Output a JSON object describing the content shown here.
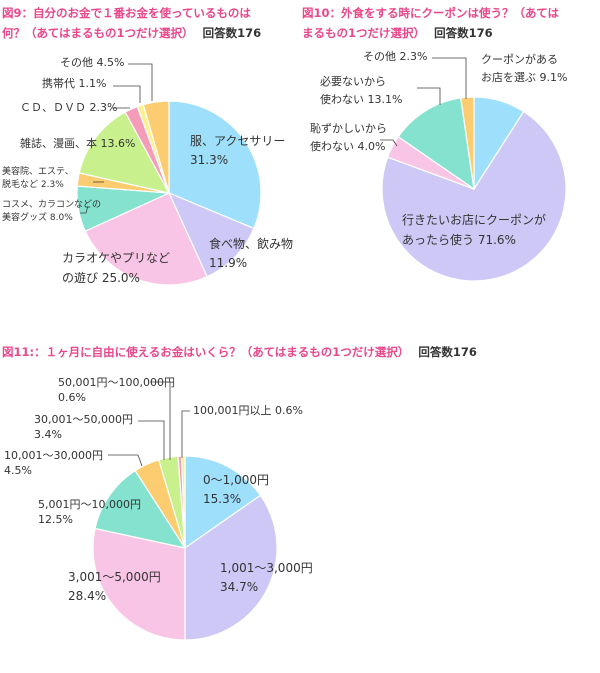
{
  "chart_data": [
    {
      "type": "pie",
      "title": "図9：自分のお金で１番お金を使っているものは何？（あてはまるもの1つだけ選択）",
      "title_lines": [
        "図9：自分のお金で１番お金を使っているものは",
        "何？（あてはまるもの1つだけ選択）"
      ],
      "respondents": "回答数176",
      "slices": [
        {
          "label": "服、アクセサリー",
          "value": 31.3,
          "value_text": "31.3%",
          "color": "#9ee0fb"
        },
        {
          "label": "食べ物、飲み物",
          "value": 11.9,
          "value_text": "11.9%",
          "color": "#cdc8f6"
        },
        {
          "label": "カラオケやプリなどの遊び",
          "value": 25.0,
          "value_text": "25.0%",
          "color": "#f9c5e6"
        },
        {
          "label": "コスメ、カラコンなどの美容グッズ",
          "value": 8.0,
          "value_text": "8.0%",
          "color": "#84e2ce"
        },
        {
          "label": "美容院、エステ、脱毛など",
          "value": 2.3,
          "value_text": "2.3%",
          "color": "#fbcd70"
        },
        {
          "label": "雑誌、漫画、本",
          "value": 13.6,
          "value_text": "13.6%",
          "color": "#c8f08c"
        },
        {
          "label": "ＣＤ、ＤＶＤ",
          "value": 2.3,
          "value_text": "2.3%",
          "color": "#f49cb8"
        },
        {
          "label": "携帯代",
          "value": 1.1,
          "value_text": "1.1%",
          "color": "#fbf190"
        },
        {
          "label": "その他",
          "value": 4.5,
          "value_text": "4.5%",
          "color": "#fbcd70"
        }
      ]
    },
    {
      "type": "pie",
      "title": "図10：外食をする時にクーポンは使う？（あてはまるもの1つだけ選択）",
      "title_lines": [
        "図10：外食をする時にクーポンは使う？（あては",
        "まるもの1つだけ選択）"
      ],
      "respondents": "回答数176",
      "slices": [
        {
          "label": "クーポンがあるお店を選ぶ",
          "value": 9.1,
          "value_text": "9.1%",
          "color": "#9ee0fb"
        },
        {
          "label": "行きたいお店にクーポンがあったら使う",
          "value": 71.6,
          "value_text": "71.6%",
          "color": "#cdc8f6"
        },
        {
          "label": "恥ずかしいから使わない",
          "value": 4.0,
          "value_text": "4.0%",
          "color": "#f9c5e6"
        },
        {
          "label": "必要ないから使わない",
          "value": 13.1,
          "value_text": "13.1%",
          "color": "#84e2ce"
        },
        {
          "label": "その他",
          "value": 2.3,
          "value_text": "2.3%",
          "color": "#fbcd70"
        }
      ]
    },
    {
      "type": "pie",
      "title": "図11:：１ヶ月に自由に使えるお金はいくら？（あてはまるもの1つだけ選択）",
      "title_lines": [
        "図11:：１ヶ月に自由に使えるお金はいくら？（あてはまるもの1つだけ選択）"
      ],
      "respondents": "回答数176",
      "slices": [
        {
          "label": "0〜1,000円",
          "value": 15.3,
          "value_text": "15.3%",
          "color": "#9ee0fb"
        },
        {
          "label": "1,001〜3,000円",
          "value": 34.7,
          "value_text": "34.7%",
          "color": "#cdc8f6"
        },
        {
          "label": "3,001〜5,000円",
          "value": 28.4,
          "value_text": "28.4%",
          "color": "#f9c5e6"
        },
        {
          "label": "5,001円〜10,000円",
          "value": 12.5,
          "value_text": "12.5%",
          "color": "#84e2ce"
        },
        {
          "label": "10,001〜30,000円",
          "value": 4.5,
          "value_text": "4.5%",
          "color": "#fbcd70"
        },
        {
          "label": "30,001〜50,000円",
          "value": 3.4,
          "value_text": "3.4%",
          "color": "#c8f08c"
        },
        {
          "label": "50,001円〜100,000円",
          "value": 0.6,
          "value_text": "0.6%",
          "color": "#f49cb8"
        },
        {
          "label": "100,001円以上",
          "value": 0.6,
          "value_text": "0.6%",
          "color": "#fbf190"
        }
      ]
    }
  ]
}
